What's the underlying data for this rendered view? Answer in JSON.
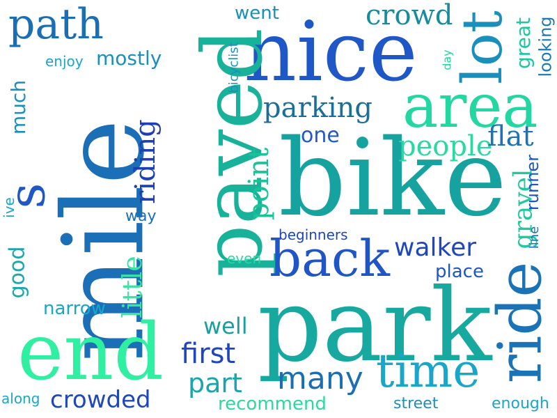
{
  "palette": {
    "background": "#ffffff",
    "blue": "#1f57c7",
    "navy": "#1d3fb5",
    "teal": "#1aa79f",
    "green": "#2fe6a1",
    "cyan": "#19a6c9"
  },
  "words": [
    {
      "id": "bike",
      "text": "bike",
      "color": "#16a39f"
    },
    {
      "id": "park",
      "text": "park",
      "color": "#17a8a0"
    },
    {
      "id": "mile",
      "text": "mile",
      "color": "#1a6fb7"
    },
    {
      "id": "nice",
      "text": "nice",
      "color": "#1f57c7"
    },
    {
      "id": "paved",
      "text": "paved",
      "color": "#18b29b"
    },
    {
      "id": "end",
      "text": "end",
      "color": "#2ff0a0"
    },
    {
      "id": "area",
      "text": "area",
      "color": "#22d7a2"
    },
    {
      "id": "lot",
      "text": "lot",
      "color": "#1a8fbc"
    },
    {
      "id": "ride",
      "text": "ride",
      "color": "#1a73b6"
    },
    {
      "id": "back",
      "text": "back",
      "color": "#1f55c6"
    },
    {
      "id": "time",
      "text": "time",
      "color": "#19a6c9"
    },
    {
      "id": "path",
      "text": "path",
      "color": "#1a6eb4"
    },
    {
      "id": "s",
      "text": "s",
      "color": "#1f58c4"
    },
    {
      "id": "crowd",
      "text": "crowd",
      "color": "#168c9a"
    },
    {
      "id": "parking",
      "text": "parking",
      "color": "#1a6f9a"
    },
    {
      "id": "riding",
      "text": "riding",
      "color": "#1d3fb5"
    },
    {
      "id": "point",
      "text": "point",
      "color": "#1a8fbc"
    },
    {
      "id": "people",
      "text": "people",
      "color": "#19c397"
    },
    {
      "id": "flat",
      "text": "flat",
      "color": "#1f5ac8"
    },
    {
      "id": "much",
      "text": "much",
      "color": "#2ad8a0"
    },
    {
      "id": "one",
      "text": "one",
      "color": "#1b73b5"
    },
    {
      "id": "great",
      "text": "great",
      "color": "#1cc6a0"
    },
    {
      "id": "looking",
      "text": "looking",
      "color": "#1a79b5"
    },
    {
      "id": "day",
      "text": "day",
      "color": "#1ed7a0"
    },
    {
      "id": "went",
      "text": "went",
      "color": "#1a8fbc"
    },
    {
      "id": "enjoy",
      "text": "enjoy",
      "color": "#19a6c9"
    },
    {
      "id": "mostly",
      "text": "mostly",
      "color": "#1a8fbc"
    },
    {
      "id": "bicyclist",
      "text": "bicyclist",
      "color": "#1a8fbc"
    },
    {
      "id": "gravel",
      "text": "gravel",
      "color": "#21c79e"
    },
    {
      "id": "runner",
      "text": "runner",
      "color": "#1d56c4"
    },
    {
      "id": "walker",
      "text": "walker",
      "color": "#1d46bf"
    },
    {
      "id": "line",
      "text": "line",
      "color": "#1a6fb6"
    },
    {
      "id": "beginners",
      "text": "beginners",
      "color": "#1d46bf"
    },
    {
      "id": "place",
      "text": "place",
      "color": "#1d56c4"
    },
    {
      "id": "even",
      "text": "even",
      "color": "#2ad8a0"
    },
    {
      "id": "good",
      "text": "good",
      "color": "#1aa8aa"
    },
    {
      "id": "narrow",
      "text": "narrow",
      "color": "#19a6c9"
    },
    {
      "id": "little",
      "text": "little",
      "color": "#3be5a0"
    },
    {
      "id": "way",
      "text": "way",
      "color": "#1a6fb6"
    },
    {
      "id": "ive",
      "text": "ive",
      "color": "#1aa6c9"
    },
    {
      "id": "well",
      "text": "well",
      "color": "#1a9f9e"
    },
    {
      "id": "first",
      "text": "first",
      "color": "#1d46bf"
    },
    {
      "id": "part",
      "text": "part",
      "color": "#18a5ab"
    },
    {
      "id": "many",
      "text": "many",
      "color": "#1a6eb4"
    },
    {
      "id": "along",
      "text": "along",
      "color": "#19a6c9"
    },
    {
      "id": "crowded",
      "text": "crowded",
      "color": "#1d46bf"
    },
    {
      "id": "recommend",
      "text": "recommend",
      "color": "#2ad8a0"
    },
    {
      "id": "street",
      "text": "street",
      "color": "#1a8fbc"
    },
    {
      "id": "enough",
      "text": "enough",
      "color": "#1aa6c9"
    }
  ]
}
